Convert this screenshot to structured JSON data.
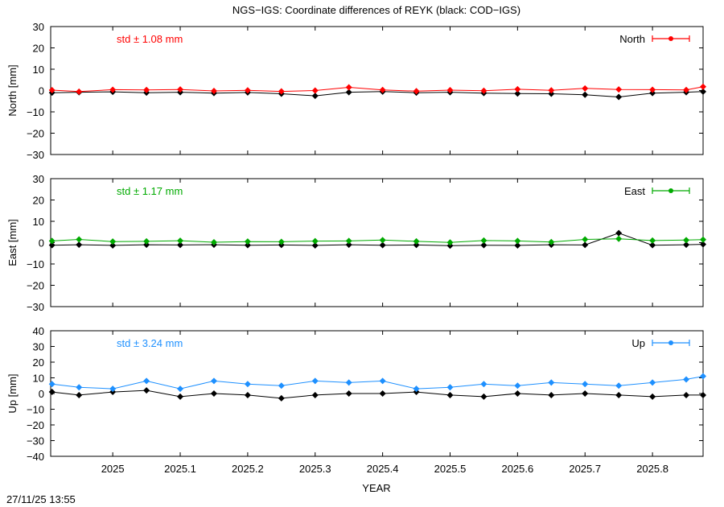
{
  "title": "NGS−IGS: Coordinate differences of REYK (black: COD−IGS)",
  "footer": "27/11/25 13:55",
  "chart_data": [
    {
      "type": "scatter",
      "ylabel": "North [mm]",
      "ylim": [
        -30,
        30
      ],
      "yticks": [
        -30,
        -20,
        -10,
        0,
        10,
        20,
        30
      ],
      "xlim": [
        2024.908,
        2025.875
      ],
      "xticks": [
        2025,
        2025.1,
        2025.2,
        2025.3,
        2025.4,
        2025.5,
        2025.6,
        2025.7,
        2025.8
      ],
      "legend": "North",
      "legend_position": "top-right",
      "std_label": "std ± 1.08 mm",
      "color": "#ff0000",
      "series": [
        {
          "name": "North",
          "color": "#ff0000",
          "x": [
            2024.91,
            2024.95,
            2025.0,
            2025.05,
            2025.1,
            2025.15,
            2025.2,
            2025.25,
            2025.3,
            2025.35,
            2025.4,
            2025.45,
            2025.5,
            2025.55,
            2025.6,
            2025.65,
            2025.7,
            2025.75,
            2025.8,
            2025.85,
            2025.875
          ],
          "y": [
            0.2,
            -0.5,
            0.4,
            0.3,
            0.5,
            -0.2,
            0.1,
            -0.4,
            0.0,
            1.5,
            0.3,
            -0.3,
            0.2,
            -0.1,
            0.6,
            0.1,
            1.0,
            0.5,
            0.4,
            0.3,
            1.8
          ]
        },
        {
          "color": "#000000",
          "x": [
            2024.91,
            2024.95,
            2025.0,
            2025.05,
            2025.1,
            2025.15,
            2025.2,
            2025.25,
            2025.3,
            2025.35,
            2025.4,
            2025.45,
            2025.5,
            2025.55,
            2025.6,
            2025.65,
            2025.7,
            2025.75,
            2025.8,
            2025.85,
            2025.875
          ],
          "y": [
            -1.0,
            -0.8,
            -0.6,
            -1.0,
            -0.8,
            -1.2,
            -0.9,
            -1.5,
            -2.5,
            -0.8,
            -0.5,
            -1.0,
            -0.8,
            -1.2,
            -1.4,
            -1.5,
            -2.0,
            -3.0,
            -1.2,
            -0.8,
            -0.5
          ]
        }
      ]
    },
    {
      "type": "scatter",
      "ylabel": "East [mm]",
      "ylim": [
        -30,
        30
      ],
      "yticks": [
        -30,
        -20,
        -10,
        0,
        10,
        20,
        30
      ],
      "xlim": [
        2024.908,
        2025.875
      ],
      "xticks": [
        2025,
        2025.1,
        2025.2,
        2025.3,
        2025.4,
        2025.5,
        2025.6,
        2025.7,
        2025.8
      ],
      "legend": "East",
      "legend_position": "top-right",
      "std_label": "std ± 1.17 mm",
      "color": "#00aa00",
      "series": [
        {
          "name": "East",
          "color": "#00aa00",
          "x": [
            2024.91,
            2024.95,
            2025.0,
            2025.05,
            2025.1,
            2025.15,
            2025.2,
            2025.25,
            2025.3,
            2025.35,
            2025.4,
            2025.45,
            2025.5,
            2025.55,
            2025.6,
            2025.65,
            2025.7,
            2025.75,
            2025.8,
            2025.85,
            2025.875
          ],
          "y": [
            0.8,
            1.5,
            0.5,
            0.6,
            0.9,
            0.2,
            0.5,
            0.4,
            0.7,
            0.8,
            1.2,
            0.6,
            0.1,
            1.0,
            0.8,
            0.3,
            1.5,
            1.8,
            1.0,
            1.2,
            1.4
          ]
        },
        {
          "color": "#000000",
          "x": [
            2024.91,
            2024.95,
            2025.0,
            2025.05,
            2025.1,
            2025.15,
            2025.2,
            2025.25,
            2025.3,
            2025.35,
            2025.4,
            2025.45,
            2025.5,
            2025.55,
            2025.6,
            2025.65,
            2025.7,
            2025.75,
            2025.8,
            2025.85,
            2025.875
          ],
          "y": [
            -1.2,
            -1.0,
            -1.3,
            -1.0,
            -1.1,
            -1.0,
            -1.2,
            -1.1,
            -1.3,
            -1.0,
            -1.2,
            -1.1,
            -1.4,
            -1.2,
            -1.3,
            -1.0,
            -1.1,
            4.5,
            -1.2,
            -1.0,
            -0.8
          ]
        }
      ]
    },
    {
      "type": "scatter",
      "ylabel": "Up [mm]",
      "ylim": [
        -40,
        40
      ],
      "yticks": [
        -40,
        -30,
        -20,
        -10,
        0,
        10,
        20,
        30,
        40
      ],
      "xlim": [
        2024.908,
        2025.875
      ],
      "xticks": [
        2025,
        2025.1,
        2025.2,
        2025.3,
        2025.4,
        2025.5,
        2025.6,
        2025.7,
        2025.8
      ],
      "legend": "Up",
      "legend_position": "top-right",
      "std_label": "std ± 3.24 mm",
      "color": "#1e90ff",
      "series": [
        {
          "name": "Up",
          "color": "#1e90ff",
          "x": [
            2024.91,
            2024.95,
            2025.0,
            2025.05,
            2025.1,
            2025.15,
            2025.2,
            2025.25,
            2025.3,
            2025.35,
            2025.4,
            2025.45,
            2025.5,
            2025.55,
            2025.6,
            2025.65,
            2025.7,
            2025.75,
            2025.8,
            2025.85,
            2025.875
          ],
          "y": [
            6,
            4,
            3,
            8,
            3,
            8,
            6,
            5,
            8,
            7,
            8,
            3,
            4,
            6,
            5,
            7,
            6,
            5,
            7,
            9,
            11
          ]
        },
        {
          "color": "#000000",
          "x": [
            2024.91,
            2024.95,
            2025.0,
            2025.05,
            2025.1,
            2025.15,
            2025.2,
            2025.25,
            2025.3,
            2025.35,
            2025.4,
            2025.45,
            2025.5,
            2025.55,
            2025.6,
            2025.65,
            2025.7,
            2025.75,
            2025.8,
            2025.85,
            2025.875
          ],
          "y": [
            1,
            -1,
            1,
            2,
            -2,
            0,
            -1,
            -3,
            -1,
            0,
            0,
            1,
            -1,
            -2,
            0,
            -1,
            0,
            -1,
            -2,
            -1,
            -1
          ]
        }
      ]
    }
  ],
  "xlabel": "YEAR"
}
